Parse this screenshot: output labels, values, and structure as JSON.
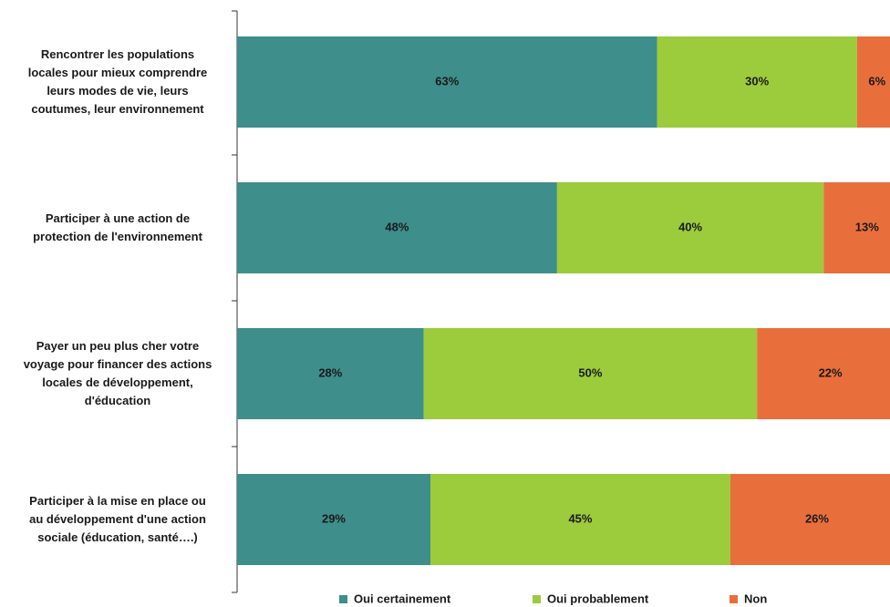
{
  "chart_data": {
    "type": "stacked_barh",
    "categories": [
      "Rencontrer les populations\nlocales pour mieux comprendre\nleurs modes de vie, leurs\ncoutumes, leur environnement",
      "Participer à une action de\nprotection de l'environnement",
      "Payer un peu plus cher votre\nvoyage pour financer des actions\nlocales de développement,\nd'éducation",
      "Participer à la mise en place ou\nau développement d'une action\nsociale (éducation, santé….)"
    ],
    "series": [
      {
        "name": "Oui certainement",
        "color": "#3e8e8b",
        "values": [
          63,
          48,
          28,
          29
        ],
        "value_labels": [
          "63%",
          "48%",
          "28%",
          "29%"
        ]
      },
      {
        "name": "Oui probablement",
        "color": "#9ccb3c",
        "values": [
          30,
          40,
          50,
          45
        ],
        "value_labels": [
          "30%",
          "40%",
          "50%",
          "45%"
        ]
      },
      {
        "name": "Non",
        "color": "#e86f3c",
        "values": [
          6,
          13,
          22,
          26
        ],
        "value_labels": [
          "6%",
          "13%",
          "22%",
          "26%"
        ]
      }
    ],
    "xlim": [
      0,
      100
    ]
  }
}
